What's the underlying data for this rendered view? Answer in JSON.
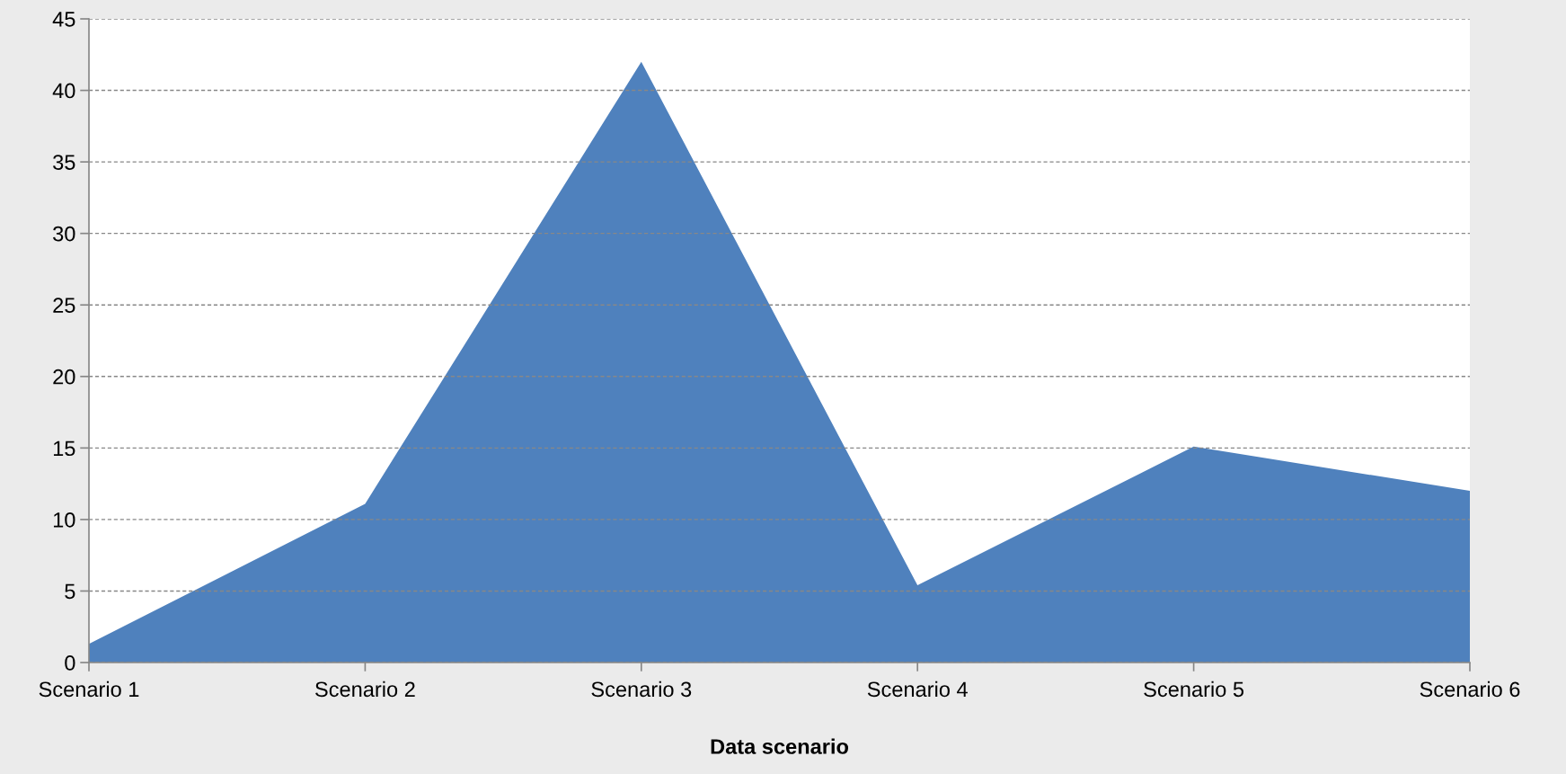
{
  "chart_data": {
    "type": "area",
    "xlabel": "Data scenario",
    "categories": [
      "Scenario 1",
      "Scenario 2",
      "Scenario 3",
      "Scenario 4",
      "Scenario 5",
      "Scenario 6"
    ],
    "series": [
      {
        "color": "#4f81bd",
        "values": [
          1.3,
          11.1,
          42.0,
          5.4,
          15.1,
          12.0
        ]
      }
    ],
    "ylim": [
      0,
      45
    ],
    "yticks": [
      0,
      5,
      10,
      15,
      20,
      25,
      30,
      35,
      40,
      45
    ],
    "grid": "y"
  }
}
